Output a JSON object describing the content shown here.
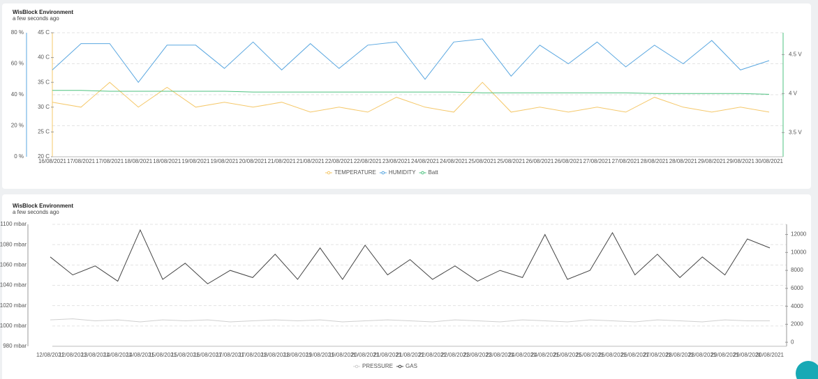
{
  "chart_data": [
    {
      "type": "line",
      "title": "WisBlock Environment",
      "subtitle": "a few seconds ago",
      "categories": [
        "16/08/2021",
        "17/08/2021",
        "17/08/2021",
        "18/08/2021",
        "18/08/2021",
        "19/08/2021",
        "19/08/2021",
        "20/08/2021",
        "21/08/2021",
        "21/08/2021",
        "22/08/2021",
        "22/08/2021",
        "23/08/2021",
        "24/08/2021",
        "24/08/2021",
        "25/08/2021",
        "25/08/2021",
        "26/08/2021",
        "26/08/2021",
        "27/08/2021",
        "27/08/2021",
        "28/08/2021",
        "28/08/2021",
        "29/08/2021",
        "29/08/2021",
        "30/08/2021"
      ],
      "ylim": [
        0,
        80
      ],
      "yticks": [
        {
          "value": 0,
          "label": "0 %"
        },
        {
          "value": 20,
          "label": "20 %"
        },
        {
          "value": 40,
          "label": "40 %"
        },
        {
          "value": 60,
          "label": "60 %"
        },
        {
          "value": 80,
          "label": "80 %"
        }
      ],
      "y2lim": [
        20,
        45
      ],
      "y2ticks": [
        {
          "value": 20,
          "label": "20 C"
        },
        {
          "value": 25,
          "label": "25 C"
        },
        {
          "value": 30,
          "label": "30 C"
        },
        {
          "value": 35,
          "label": "35 C"
        },
        {
          "value": 40,
          "label": "40 C"
        },
        {
          "value": 45,
          "label": "45 C"
        }
      ],
      "y3lim": [
        3.19,
        4.78
      ],
      "y3ticks": [
        {
          "value": 3.5,
          "label": "3.5 V"
        },
        {
          "value": 4,
          "label": "4 V"
        },
        {
          "value": 4.5,
          "label": "4.5 V"
        }
      ],
      "grid": true,
      "series": [
        {
          "name": "TEMPERATURE",
          "color": "#f5c86a",
          "axis": "y2",
          "values": [
            31,
            30,
            35,
            30,
            34,
            30,
            31,
            30,
            31,
            29,
            30,
            29,
            32,
            30,
            29,
            35,
            29,
            30,
            29,
            30,
            29,
            32,
            30,
            29,
            30,
            29
          ]
        },
        {
          "name": "HUMIDITY",
          "color": "#5aa7e0",
          "axis": "y",
          "values": [
            56,
            73,
            73,
            48,
            72,
            72,
            57,
            74,
            56,
            73,
            57,
            72,
            74,
            50,
            74,
            76,
            52,
            72,
            60,
            74,
            58,
            72,
            60,
            75,
            56,
            62
          ]
        },
        {
          "name": "Batt",
          "color": "#4cc27f",
          "axis": "y3",
          "values": [
            4.04,
            4.04,
            4.03,
            4.03,
            4.03,
            4.03,
            4.03,
            4.02,
            4.02,
            4.02,
            4.02,
            4.02,
            4.02,
            4.02,
            4.02,
            4.01,
            4.01,
            4.01,
            4.01,
            4.01,
            4.01,
            4.0,
            4.0,
            4.0,
            4.0,
            3.99
          ]
        }
      ]
    },
    {
      "type": "line",
      "title": "WisBlock Environment",
      "subtitle": "a few seconds ago",
      "categories": [
        "12/08/2021",
        "12/08/2021",
        "13/08/2021",
        "14/08/2021",
        "14/08/2021",
        "15/08/2021",
        "15/08/2021",
        "16/08/2021",
        "17/08/2021",
        "17/08/2021",
        "18/08/2021",
        "18/08/2021",
        "19/08/2021",
        "19/08/2021",
        "20/08/2021",
        "21/08/2021",
        "21/08/2021",
        "22/08/2021",
        "22/08/2021",
        "23/08/2021",
        "23/08/2021",
        "24/08/2021",
        "24/08/2021",
        "25/08/2021",
        "25/08/2021",
        "26/08/2021",
        "26/08/2021",
        "27/08/2021",
        "28/08/2021",
        "28/08/2021",
        "29/08/2021",
        "29/08/2021",
        "30/08/2021"
      ],
      "ylim": [
        980,
        1100
      ],
      "yticks": [
        {
          "value": 980,
          "label": "980 mbar"
        },
        {
          "value": 1000,
          "label": "1000 mbar"
        },
        {
          "value": 1020,
          "label": "1020 mbar"
        },
        {
          "value": 1040,
          "label": "1040 mbar"
        },
        {
          "value": 1060,
          "label": "1060 mbar"
        },
        {
          "value": 1080,
          "label": "1080 mbar"
        },
        {
          "value": 1100,
          "label": "1100 mbar"
        }
      ],
      "y2lim": [
        -450,
        13130
      ],
      "y2ticks": [
        0,
        2000,
        4000,
        6000,
        8000,
        10000,
        12000
      ],
      "grid": true,
      "series": [
        {
          "name": "PRESSURE",
          "color": "#cfcfcf",
          "axis": "y",
          "values": [
            1006,
            1007,
            1005,
            1006,
            1004,
            1006,
            1005,
            1006,
            1004,
            1005,
            1006,
            1005,
            1006,
            1004,
            1005,
            1006,
            1005,
            1004,
            1006,
            1005,
            1004,
            1006,
            1005,
            1004,
            1006,
            1005,
            1004,
            1006,
            1005,
            1004,
            1006,
            1005,
            1005
          ]
        },
        {
          "name": "GAS",
          "color": "#444444",
          "axis": "y2",
          "values": [
            9500,
            7500,
            8500,
            6800,
            12500,
            7000,
            8800,
            6500,
            8000,
            7200,
            9800,
            7000,
            10500,
            7000,
            10800,
            7500,
            9200,
            7000,
            8500,
            6800,
            8000,
            7200,
            12000,
            7000,
            8000,
            12200,
            7500,
            9800,
            7200,
            9500,
            7500,
            11500,
            10500
          ]
        }
      ]
    }
  ]
}
